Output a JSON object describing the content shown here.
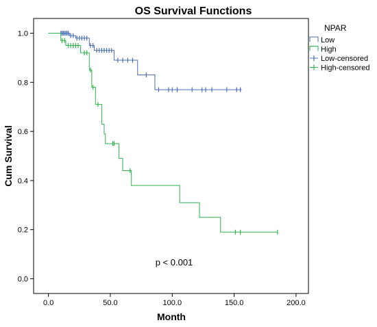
{
  "chart_data": {
    "type": "line",
    "title": "OS Survival Functions",
    "xlabel": "Month",
    "ylabel": "Cum Survival",
    "xlim": [
      -12,
      210
    ],
    "ylim": [
      -0.06,
      1.06
    ],
    "x_ticks": [
      0,
      50,
      100,
      150,
      200
    ],
    "x_tick_labels": [
      "0.0",
      "50.0",
      "100.0",
      "150.0",
      "200.0"
    ],
    "y_ticks": [
      0,
      0.2,
      0.4,
      0.6,
      0.8,
      1.0
    ],
    "y_tick_labels": [
      "0.0",
      "0.2",
      "0.4",
      "0.6",
      "0.8",
      "1.0"
    ],
    "grid": false,
    "legend_title": "NPAR",
    "legend_placement": "right",
    "annotation": "p < 0.001",
    "series": [
      {
        "name": "Low",
        "color": "#4a6cb8",
        "censor_label": "Low-censored",
        "steps": [
          [
            0,
            1.0
          ],
          [
            17,
            0.99
          ],
          [
            22,
            0.98
          ],
          [
            33,
            0.95
          ],
          [
            37,
            0.93
          ],
          [
            53,
            0.89
          ],
          [
            72,
            0.83
          ],
          [
            86,
            0.77
          ],
          [
            156,
            0.77
          ]
        ],
        "censored": [
          [
            10,
            1.0
          ],
          [
            11,
            1.0
          ],
          [
            12,
            1.0
          ],
          [
            13,
            1.0
          ],
          [
            14,
            1.0
          ],
          [
            15,
            1.0
          ],
          [
            16,
            1.0
          ],
          [
            18,
            0.99
          ],
          [
            20,
            0.99
          ],
          [
            23,
            0.98
          ],
          [
            25,
            0.98
          ],
          [
            27,
            0.98
          ],
          [
            29,
            0.98
          ],
          [
            31,
            0.98
          ],
          [
            34,
            0.95
          ],
          [
            36,
            0.95
          ],
          [
            39,
            0.93
          ],
          [
            41,
            0.93
          ],
          [
            43,
            0.93
          ],
          [
            45,
            0.93
          ],
          [
            47,
            0.93
          ],
          [
            49,
            0.93
          ],
          [
            51,
            0.93
          ],
          [
            56,
            0.89
          ],
          [
            60,
            0.89
          ],
          [
            64,
            0.89
          ],
          [
            68,
            0.89
          ],
          [
            79,
            0.83
          ],
          [
            89,
            0.77
          ],
          [
            97,
            0.77
          ],
          [
            100,
            0.77
          ],
          [
            104,
            0.77
          ],
          [
            116,
            0.77
          ],
          [
            124,
            0.77
          ],
          [
            127,
            0.77
          ],
          [
            132,
            0.77
          ],
          [
            144,
            0.77
          ],
          [
            152,
            0.77
          ],
          [
            155,
            0.77
          ]
        ]
      },
      {
        "name": "High",
        "color": "#2db34a",
        "censor_label": "High-censored",
        "steps": [
          [
            0,
            1.0
          ],
          [
            10,
            0.97
          ],
          [
            14,
            0.95
          ],
          [
            26,
            0.92
          ],
          [
            33,
            0.85
          ],
          [
            35,
            0.78
          ],
          [
            38,
            0.71
          ],
          [
            43,
            0.63
          ],
          [
            45,
            0.59
          ],
          [
            46,
            0.55
          ],
          [
            57,
            0.49
          ],
          [
            60,
            0.44
          ],
          [
            67,
            0.38
          ],
          [
            106,
            0.31
          ],
          [
            122,
            0.25
          ],
          [
            139,
            0.19
          ],
          [
            185,
            0.19
          ]
        ],
        "censored": [
          [
            11,
            0.97
          ],
          [
            13,
            0.97
          ],
          [
            16,
            0.95
          ],
          [
            18,
            0.95
          ],
          [
            20,
            0.95
          ],
          [
            22,
            0.95
          ],
          [
            24,
            0.95
          ],
          [
            29,
            0.92
          ],
          [
            31,
            0.92
          ],
          [
            34,
            0.85
          ],
          [
            36,
            0.78
          ],
          [
            40,
            0.71
          ],
          [
            52,
            0.55
          ],
          [
            53,
            0.55
          ],
          [
            66,
            0.44
          ],
          [
            151,
            0.19
          ],
          [
            155,
            0.19
          ],
          [
            185,
            0.19
          ]
        ]
      }
    ]
  }
}
